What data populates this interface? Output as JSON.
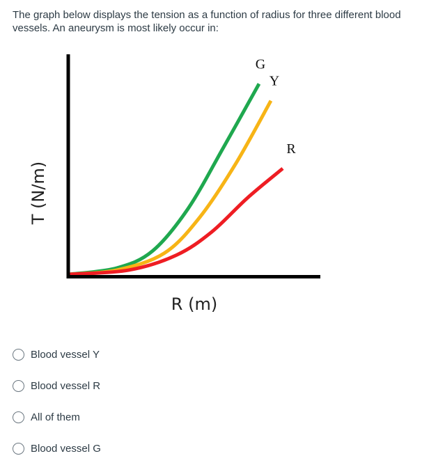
{
  "question": {
    "text": "The graph below displays the tension as a function of radius for three different blood vessels.  An aneurysm is most likely occur in:"
  },
  "chart_data": {
    "type": "line",
    "xlabel": "R (m)",
    "ylabel": "T (N/m)",
    "series": [
      {
        "name": "G",
        "color": "#1fa84f",
        "points": [
          [
            0,
            0.0
          ],
          [
            0.2,
            0.03
          ],
          [
            0.35,
            0.11
          ],
          [
            0.5,
            0.31
          ],
          [
            0.65,
            0.6
          ],
          [
            0.8,
            0.9
          ]
        ]
      },
      {
        "name": "Y",
        "color": "#f7b416",
        "points": [
          [
            0,
            0.0
          ],
          [
            0.2,
            0.02
          ],
          [
            0.4,
            0.1
          ],
          [
            0.55,
            0.27
          ],
          [
            0.7,
            0.52
          ],
          [
            0.85,
            0.82
          ]
        ]
      },
      {
        "name": "R",
        "color": "#ee1d23",
        "points": [
          [
            0,
            0.0
          ],
          [
            0.25,
            0.02
          ],
          [
            0.45,
            0.09
          ],
          [
            0.6,
            0.2
          ],
          [
            0.75,
            0.36
          ],
          [
            0.9,
            0.5
          ]
        ]
      }
    ],
    "axes_color": "#000000",
    "grid": false
  },
  "options": [
    {
      "label": "Blood vessel Y"
    },
    {
      "label": "Blood vessel R"
    },
    {
      "label": "All of them"
    },
    {
      "label": "Blood vessel G"
    }
  ]
}
